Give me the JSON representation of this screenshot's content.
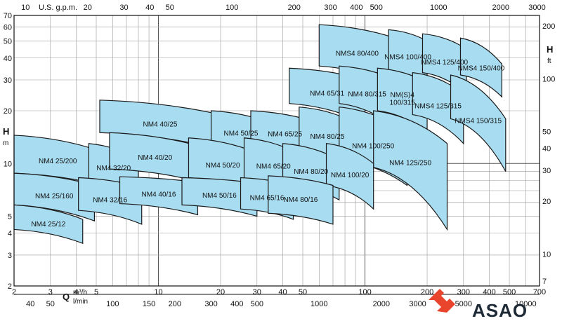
{
  "chart_data": {
    "type": "area",
    "title": "",
    "scale": "log-log",
    "grid": true,
    "x_axis": {
      "label": "Q",
      "units": [
        "m³/h",
        "l/min"
      ],
      "range_m3h": [
        2,
        700
      ],
      "ticks_m3h": [
        "2",
        "3",
        "4",
        "5",
        "10",
        "20",
        "30",
        "40",
        "50",
        "100",
        "200",
        "300",
        "400",
        "500",
        "700"
      ],
      "ticks_lmin": [
        "40",
        "50",
        "100",
        "150",
        "200",
        "300",
        "400",
        "500",
        "1000",
        "2000",
        "3000",
        "5000",
        "10000"
      ],
      "ticks_usgpm": [
        "10",
        "20",
        "30",
        "40",
        "50",
        "100",
        "200",
        "300",
        "400",
        "500",
        "1000",
        "2000",
        "3000"
      ],
      "usgpm_label": "U.S. g.p.m."
    },
    "y_axis": {
      "label": "H",
      "units": [
        "m",
        "ft"
      ],
      "range_m": [
        2,
        70
      ],
      "ticks_m": [
        "2",
        "3",
        "4",
        "5",
        "10",
        "20",
        "30",
        "40",
        "50",
        "60",
        "70"
      ],
      "ticks_ft": [
        "7",
        "10",
        "20",
        "30",
        "40",
        "50",
        "100",
        "200"
      ]
    },
    "curve_fill": "#a8dcf0",
    "zones": [
      {
        "label": "NMS4 80/400",
        "l": 60,
        "r": 140,
        "hl": 62,
        "hr": 52,
        "bl": 36,
        "br": 28
      },
      {
        "label": "NMS4 100/400",
        "l": 130,
        "r": 200,
        "hl": 58,
        "hr": 50,
        "bl": 34,
        "br": 27
      },
      {
        "label": "NMS4 125/400",
        "l": 190,
        "r": 310,
        "hl": 55,
        "hr": 45,
        "bl": 33,
        "br": 25
      },
      {
        "label": "NMS4 150/400",
        "l": 290,
        "r": 460,
        "hl": 52,
        "hr": 37,
        "bl": 32,
        "br": 24
      },
      {
        "label": "NM4 65/31",
        "l": 43,
        "r": 100,
        "hl": 35,
        "hr": 30,
        "bl": 22,
        "br": 17
      },
      {
        "label": "NM4 80/315",
        "l": 75,
        "r": 140,
        "hl": 36,
        "hr": 30,
        "bl": 22,
        "br": 16
      },
      {
        "label": "NM(S)4 100/315",
        "l": 115,
        "r": 200,
        "hl": 35,
        "hr": 29,
        "bl": 20,
        "br": 15
      },
      {
        "label": "NMS4 125/315",
        "l": 170,
        "r": 300,
        "hl": 33,
        "hr": 25,
        "bl": 19,
        "br": 13
      },
      {
        "label": "NMS4 150/315",
        "l": 260,
        "r": 480,
        "hl": 32,
        "hr": 18,
        "bl": 18,
        "br": 9
      },
      {
        "label": "NM4 40/25",
        "l": 5.2,
        "r": 20,
        "hl": 23,
        "hr": 19,
        "bl": 15,
        "br": 12
      },
      {
        "label": "NM4 50/25",
        "l": 18,
        "r": 35,
        "hl": 20,
        "hr": 17,
        "bl": 13,
        "br": 11
      },
      {
        "label": "NM4 65/25",
        "l": 28,
        "r": 60,
        "hl": 20,
        "hr": 17,
        "bl": 13,
        "br": 10.5
      },
      {
        "label": "NM4 80/25",
        "l": 48,
        "r": 90,
        "hl": 21,
        "hr": 17,
        "bl": 12,
        "br": 9.5
      },
      {
        "label": "NM4 100/250",
        "l": 75,
        "r": 160,
        "hl": 21,
        "hr": 15,
        "bl": 10.5,
        "br": 7.5
      },
      {
        "label": "NM4 125/250",
        "l": 110,
        "r": 250,
        "hl": 20,
        "hr": 13,
        "bl": 9.5,
        "br": 4.2
      },
      {
        "label": "NM4 25/200",
        "l": 2,
        "r": 5.3,
        "hl": 14.5,
        "hr": 11.7,
        "bl": 8.8,
        "br": 7.5
      },
      {
        "label": "NM4 32/20",
        "l": 4.6,
        "r": 8,
        "hl": 13,
        "hr": 10.5,
        "bl": 8.2,
        "br": 7
      },
      {
        "label": "NM4 40/20",
        "l": 5.8,
        "r": 16,
        "hl": 15,
        "hr": 12.5,
        "bl": 9.3,
        "br": 7.8
      },
      {
        "label": "NM4 50/20",
        "l": 14,
        "r": 30,
        "hl": 14,
        "hr": 11.5,
        "bl": 8.3,
        "br": 6.8
      },
      {
        "label": "NM4 65/20",
        "l": 26,
        "r": 50,
        "hl": 14,
        "hr": 11,
        "bl": 8.2,
        "br": 6.8
      },
      {
        "label": "NM4 80/20",
        "l": 40,
        "r": 75,
        "hl": 13,
        "hr": 10.5,
        "bl": 7.7,
        "br": 6.2
      },
      {
        "label": "NM4 100/20",
        "l": 65,
        "r": 110,
        "hl": 13,
        "hr": 10,
        "bl": 7.5,
        "br": 5.5
      },
      {
        "label": "NM4 25/160",
        "l": 2,
        "r": 4.9,
        "hl": 8.8,
        "hr": 7.5,
        "bl": 5.8,
        "br": 4.7
      },
      {
        "label": "NM4 32/16",
        "l": 4.1,
        "r": 8.3,
        "hl": 8.3,
        "hr": 7.3,
        "bl": 5.4,
        "br": 4.5
      },
      {
        "label": "NM4 40/16",
        "l": 6.5,
        "r": 15.5,
        "hl": 8.4,
        "hr": 7.8,
        "bl": 5.9,
        "br": 5.1
      },
      {
        "label": "NM4 50/16",
        "l": 13,
        "r": 30,
        "hl": 8.3,
        "hr": 7.7,
        "bl": 5.8,
        "br": 5.0
      },
      {
        "label": "NM4 65/16",
        "l": 25,
        "r": 45,
        "hl": 8.3,
        "hr": 7.5,
        "bl": 5.5,
        "br": 4.8
      },
      {
        "label": "NM4 80/16",
        "l": 34,
        "r": 70,
        "hl": 8.5,
        "hr": 7.5,
        "bl": 5.2,
        "br": 4.5
      },
      {
        "label": "NM4 25/12",
        "l": 2,
        "r": 4.3,
        "hl": 5.8,
        "hr": 4.8,
        "bl": 4.2,
        "br": 3.5
      }
    ]
  },
  "logo": {
    "text": "ASAO",
    "colors": {
      "accent": "#e8452c",
      "text": "#1e2a35"
    }
  }
}
